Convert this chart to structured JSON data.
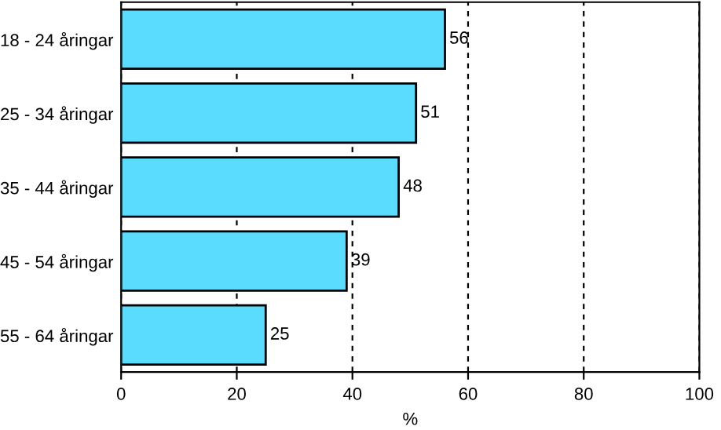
{
  "chart_data": {
    "type": "bar",
    "orientation": "horizontal",
    "xlabel": "%",
    "categories": [
      "18 - 24 åringar",
      "25 - 34 åringar",
      "35 - 44 åringar",
      "45 - 54 åringar",
      "55 - 64 åringar"
    ],
    "values": [
      56,
      51,
      48,
      39,
      25
    ],
    "color": "#5adcff",
    "data_labels": true,
    "xlim": [
      0,
      100
    ],
    "xticks": [
      0,
      20,
      40,
      60,
      80,
      100
    ],
    "grid": "x",
    "legend": false
  }
}
